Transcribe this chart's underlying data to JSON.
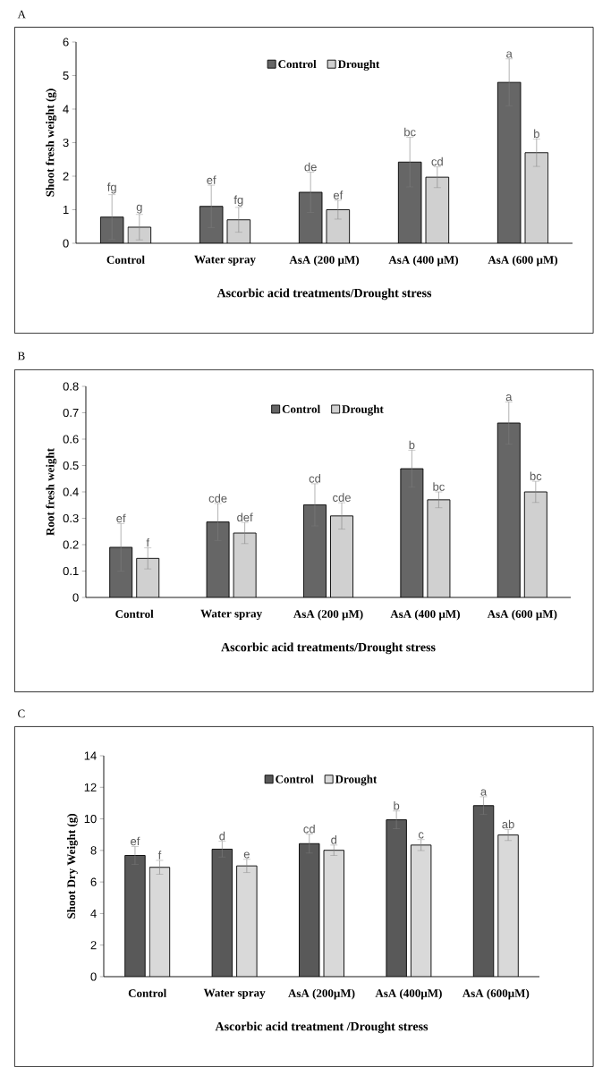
{
  "chart_data": [
    {
      "type": "bar",
      "title": "A",
      "categories": [
        "Control",
        "Water spray",
        "AsA (200 µM)",
        "AsA (400 µM)",
        "AsA (600 µM)"
      ],
      "xlabel": "Ascorbic acid treatments/Drought stress",
      "ylabel": "Shoot fresh weight (g)",
      "ylim": [
        0,
        6
      ],
      "yticks": [
        0,
        1,
        2,
        3,
        4,
        5,
        6
      ],
      "legend": "top",
      "series": [
        {
          "name": "Control",
          "color": "#666666",
          "values": [
            0.78,
            1.1,
            1.52,
            2.42,
            4.8
          ],
          "errors": [
            0.67,
            0.63,
            0.6,
            0.74,
            0.7
          ],
          "value_labels": [
            "fg",
            "ef",
            "de",
            "bc",
            "a"
          ]
        },
        {
          "name": "Drought",
          "color": "#d0d0d0",
          "values": [
            0.48,
            0.7,
            1.0,
            1.97,
            2.7
          ],
          "errors": [
            0.38,
            0.37,
            0.28,
            0.31,
            0.41
          ],
          "value_labels": [
            "g",
            "fg",
            "ef",
            "cd",
            "b"
          ]
        }
      ]
    },
    {
      "type": "bar",
      "title": "B",
      "categories": [
        "Control",
        "Water spray",
        "AsA (200 µM)",
        "AsA (400 µM)",
        "AsA (600 µM)"
      ],
      "xlabel": "Ascorbic acid treatments/Drought stress",
      "ylabel": "Root fresh weight",
      "ylim": [
        0,
        0.8
      ],
      "yticks": [
        0,
        0.1,
        0.2,
        0.3,
        0.4,
        0.5,
        0.6,
        0.7,
        0.8
      ],
      "legend": "top",
      "series": [
        {
          "name": "Control",
          "color": "#666666",
          "values": [
            0.19,
            0.286,
            0.351,
            0.488,
            0.661
          ],
          "errors": [
            0.09,
            0.07,
            0.08,
            0.07,
            0.08
          ],
          "value_labels": [
            "ef",
            "cde",
            "cd",
            "b",
            "a"
          ]
        },
        {
          "name": "Drought",
          "color": "#d0d0d0",
          "values": [
            0.148,
            0.244,
            0.309,
            0.37,
            0.4
          ],
          "errors": [
            0.04,
            0.04,
            0.05,
            0.03,
            0.04
          ],
          "value_labels": [
            "f",
            "def",
            "cde",
            "bc",
            "bc"
          ]
        }
      ]
    },
    {
      "type": "bar",
      "title": "C",
      "categories": [
        "Control",
        "Water spray",
        "AsA (200µM)",
        "AsA (400µM)",
        "AsA (600µM)"
      ],
      "xlabel": "Ascorbic acid treatment /Drought stress",
      "ylabel": "Shoot Dry Weight (g)",
      "ylim": [
        0,
        14
      ],
      "yticks": [
        0,
        2,
        4,
        6,
        8,
        10,
        12,
        14
      ],
      "legend": "top",
      "series": [
        {
          "name": "Control",
          "color": "#595959",
          "values": [
            7.68,
            8.08,
            8.43,
            9.94,
            10.84
          ],
          "errors": [
            0.57,
            0.5,
            0.6,
            0.56,
            0.56
          ],
          "value_labels": [
            "ef",
            "d",
            "cd",
            "b",
            "a"
          ]
        },
        {
          "name": "Drought",
          "color": "#d9d9d9",
          "values": [
            6.93,
            7.02,
            8.01,
            8.34,
            8.98
          ],
          "errors": [
            0.44,
            0.42,
            0.33,
            0.35,
            0.35
          ],
          "value_labels": [
            "f",
            "e",
            "d",
            "c",
            "ab"
          ]
        }
      ]
    }
  ]
}
